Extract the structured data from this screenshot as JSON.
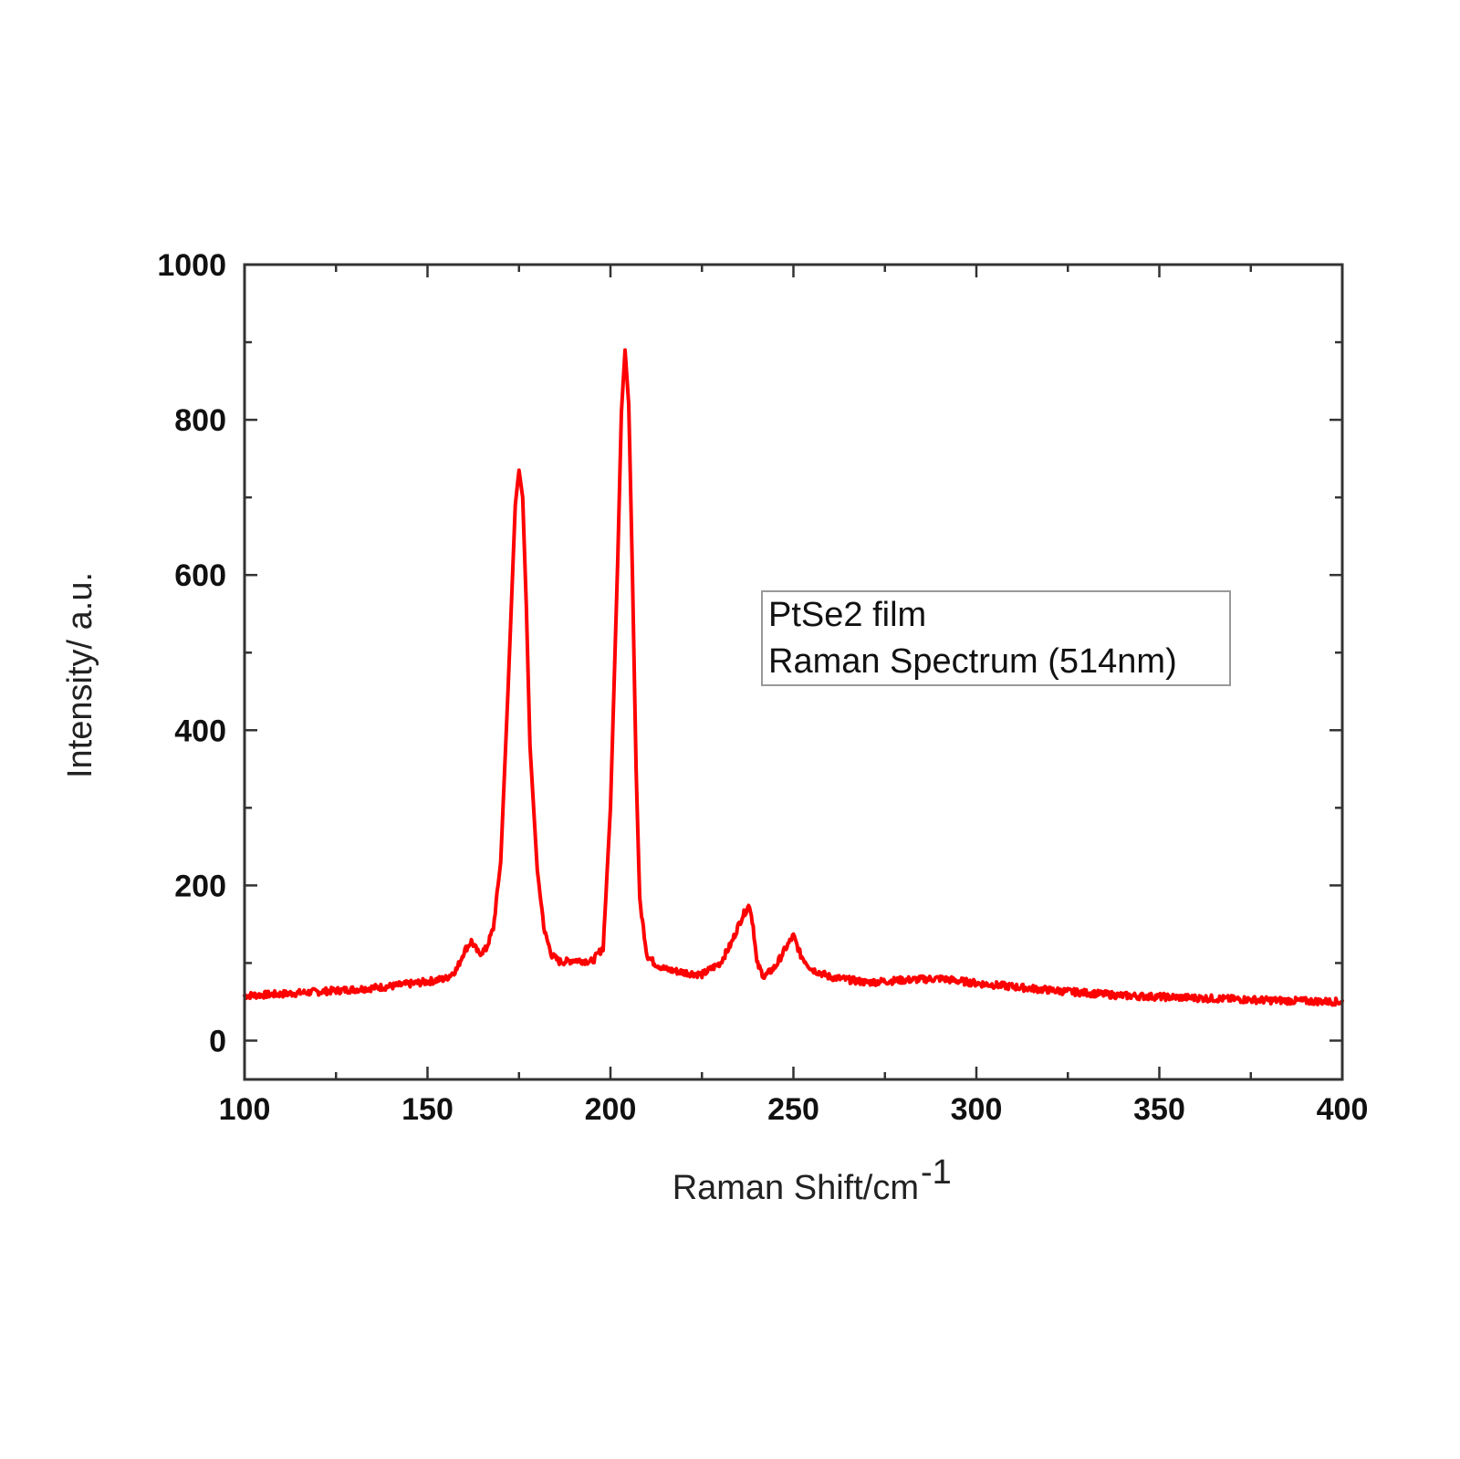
{
  "chart_data": {
    "type": "line",
    "title": "",
    "xlabel": "Raman Shift/cm",
    "xlabel_superscript": "-1",
    "ylabel": "Intensity/ a.u.",
    "xlim": [
      100,
      400
    ],
    "ylim": [
      -50,
      1000
    ],
    "x_ticks": [
      100,
      150,
      200,
      250,
      300,
      350,
      400
    ],
    "y_ticks": [
      0,
      200,
      400,
      600,
      800,
      1000
    ],
    "grid": false,
    "legend_position": "center-right",
    "annotation_lines": [
      "PtSe2 film",
      "Raman Spectrum (514nm)"
    ],
    "line_color": "#ff0000",
    "series": [
      {
        "color": "#ff0000",
        "x": [
          100,
          110,
          120,
          130,
          140,
          150,
          155,
          158,
          160,
          162,
          164,
          166,
          168,
          170,
          172,
          174,
          175,
          176,
          177,
          178,
          180,
          182,
          184,
          186,
          188,
          190,
          195,
          198,
          200,
          202,
          203,
          204,
          205,
          206,
          207,
          208,
          210,
          212,
          215,
          220,
          225,
          230,
          233,
          236,
          238,
          239,
          240,
          242,
          245,
          248,
          250,
          252,
          255,
          260,
          270,
          280,
          290,
          300,
          320,
          340,
          360,
          380,
          400
        ],
        "y": [
          58,
          60,
          63,
          66,
          70,
          76,
          80,
          92,
          115,
          128,
          112,
          118,
          145,
          230,
          450,
          690,
          735,
          700,
          560,
          380,
          220,
          140,
          110,
          102,
          102,
          104,
          102,
          120,
          300,
          620,
          810,
          890,
          820,
          600,
          350,
          180,
          110,
          100,
          92,
          88,
          85,
          100,
          125,
          160,
          175,
          148,
          100,
          82,
          95,
          120,
          135,
          110,
          92,
          82,
          75,
          78,
          80,
          74,
          65,
          58,
          55,
          52,
          50
        ]
      }
    ]
  }
}
